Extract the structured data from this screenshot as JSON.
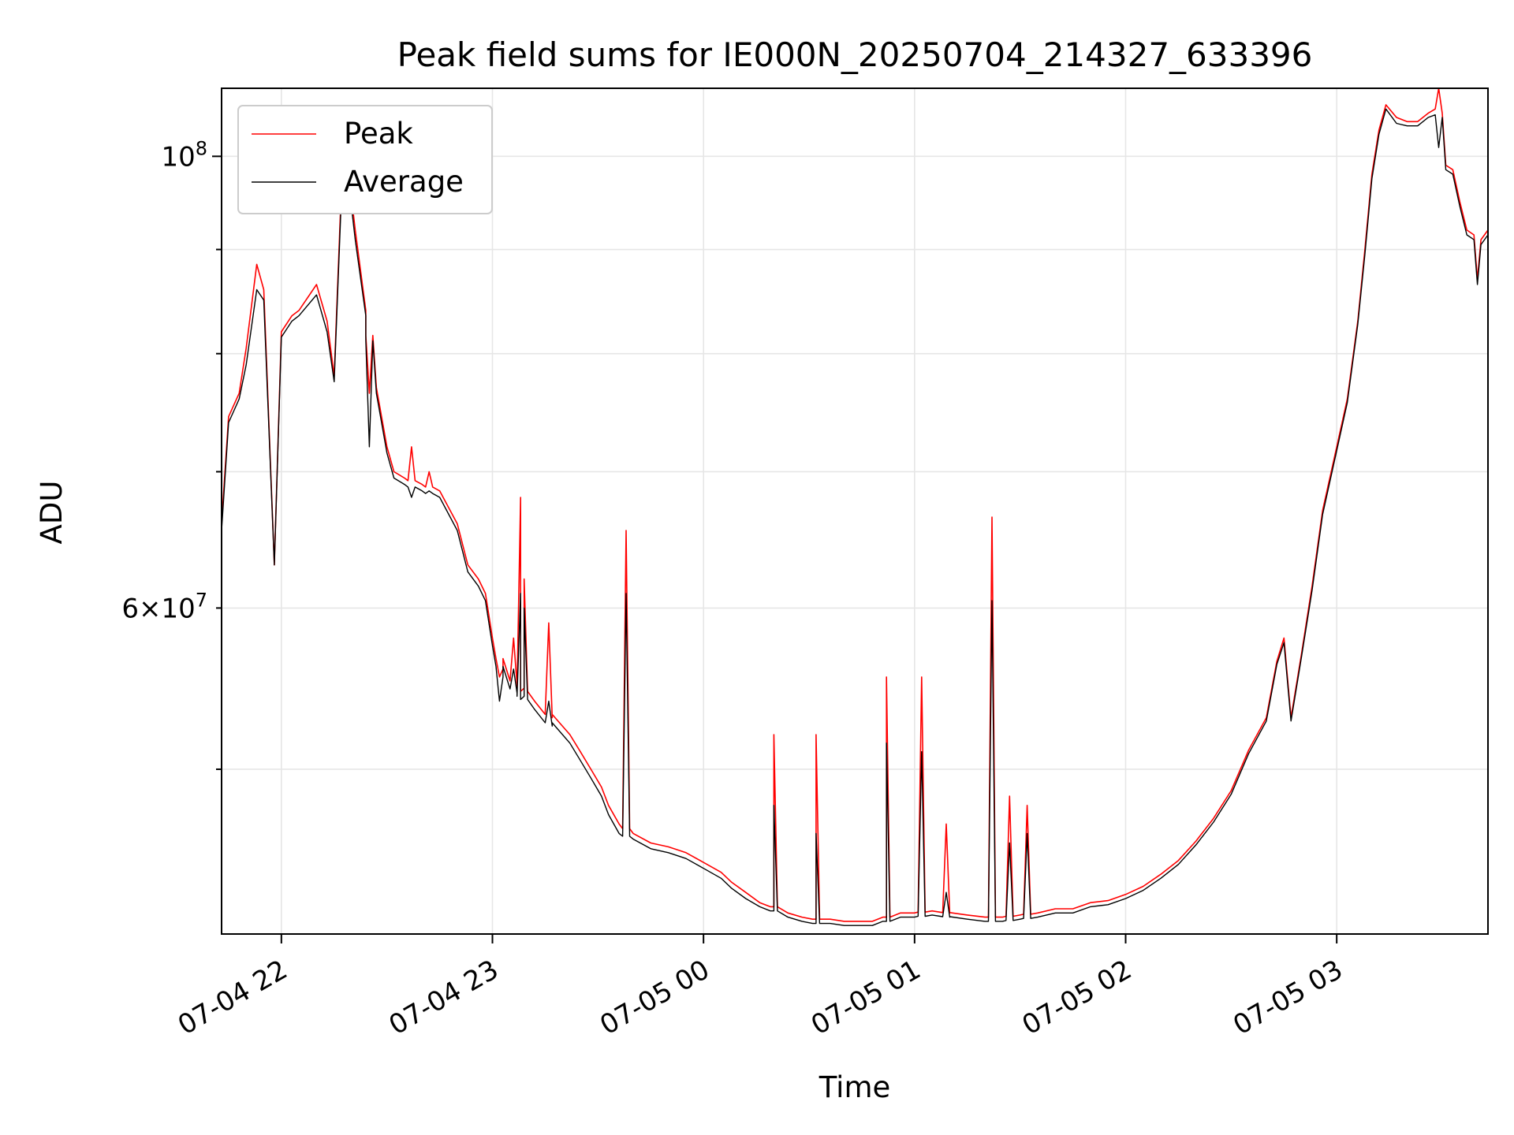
{
  "chart_data": {
    "type": "line",
    "title": "Peak field sums for IE000N_20250704_214327_633396",
    "xlabel": "Time",
    "ylabel": "ADU",
    "y_scale": "log",
    "ylim": [
      41500000,
      108000000
    ],
    "x_range": [
      "07-04 21:43",
      "07-05 03:43"
    ],
    "x_ticks": [
      "07-04 22",
      "07-04 23",
      "07-05 00",
      "07-05 01",
      "07-05 02",
      "07-05 03"
    ],
    "y_major_tick": {
      "value": 100000000,
      "label": "10^8"
    },
    "y_labeled_minor_tick": {
      "value": 60000000,
      "label": "6 × 10^7"
    },
    "grid": true,
    "legend": {
      "location": "upper-left"
    },
    "series": [
      {
        "name": "Peak",
        "color": "#ff0000",
        "points": [
          [
            "07-04 21:43",
            66000000
          ],
          [
            "07-04 21:45",
            74500000
          ],
          [
            "07-04 21:48",
            76500000
          ],
          [
            "07-04 21:50",
            80500000
          ],
          [
            "07-04 21:53",
            88500000
          ],
          [
            "07-04 21:55",
            86000000
          ],
          [
            "07-04 21:58",
            63000000
          ],
          [
            "07-04 22:00",
            82000000
          ],
          [
            "07-04 22:03",
            83500000
          ],
          [
            "07-04 22:05",
            84000000
          ],
          [
            "07-04 22:10",
            86500000
          ],
          [
            "07-04 22:13",
            83000000
          ],
          [
            "07-04 22:15",
            78000000
          ],
          [
            "07-04 22:17",
            96000000
          ],
          [
            "07-04 22:19",
            98500000
          ],
          [
            "07-04 22:21",
            92000000
          ],
          [
            "07-04 22:24",
            84000000
          ],
          [
            "07-04 22:27",
            77000000
          ],
          [
            "07-04 22:30",
            72000000
          ],
          [
            "07-04 22:32",
            70000000
          ],
          [
            "07-04 22:35",
            69500000
          ],
          [
            "07-04 22:40",
            69000000
          ],
          [
            "07-04 22:45",
            68500000
          ],
          [
            "07-04 22:50",
            66000000
          ],
          [
            "07-04 22:53",
            63000000
          ],
          [
            "07-04 22:56",
            62000000
          ],
          [
            "07-04 22:58",
            61000000
          ],
          [
            "07-04 23:00",
            58000000
          ],
          [
            "07-04 23:03",
            56000000
          ],
          [
            "07-04 23:07",
            55000000
          ],
          [
            "07-04 23:12",
            54000000
          ],
          [
            "07-04 23:17",
            53000000
          ],
          [
            "07-04 23:22",
            52000000
          ],
          [
            "07-04 23:25",
            51000000
          ],
          [
            "07-04 23:28",
            50000000
          ],
          [
            "07-04 23:31",
            49000000
          ],
          [
            "07-04 23:33",
            48000000
          ],
          [
            "07-04 23:36",
            47000000
          ],
          [
            "07-04 23:40",
            46500000
          ],
          [
            "07-04 23:45",
            46000000
          ],
          [
            "07-04 23:50",
            45800000
          ],
          [
            "07-04 23:55",
            45500000
          ],
          [
            "07-05 00:00",
            45000000
          ],
          [
            "07-05 00:05",
            44500000
          ],
          [
            "07-05 00:08",
            44000000
          ],
          [
            "07-05 00:12",
            43500000
          ],
          [
            "07-05 00:16",
            43000000
          ],
          [
            "07-05 00:20",
            42800000
          ],
          [
            "07-05 00:24",
            42500000
          ],
          [
            "07-05 00:28",
            42300000
          ],
          [
            "07-05 00:32",
            42200000
          ],
          [
            "07-05 00:36",
            42200000
          ],
          [
            "07-05 00:40",
            42100000
          ],
          [
            "07-05 00:44",
            42100000
          ],
          [
            "07-05 00:48",
            42100000
          ],
          [
            "07-05 00:52",
            42300000
          ],
          [
            "07-05 00:56",
            42500000
          ],
          [
            "07-05 01:00",
            42500000
          ],
          [
            "07-05 01:05",
            42600000
          ],
          [
            "07-05 01:10",
            42500000
          ],
          [
            "07-05 01:15",
            42400000
          ],
          [
            "07-05 01:20",
            42300000
          ],
          [
            "07-05 01:25",
            42300000
          ],
          [
            "07-05 01:30",
            42400000
          ],
          [
            "07-05 01:35",
            42500000
          ],
          [
            "07-05 01:40",
            42700000
          ],
          [
            "07-05 01:45",
            42700000
          ],
          [
            "07-05 01:50",
            43000000
          ],
          [
            "07-05 01:55",
            43100000
          ],
          [
            "07-05 02:00",
            43400000
          ],
          [
            "07-05 02:05",
            43800000
          ],
          [
            "07-05 02:10",
            44400000
          ],
          [
            "07-05 02:15",
            45100000
          ],
          [
            "07-05 02:20",
            46100000
          ],
          [
            "07-05 02:25",
            47300000
          ],
          [
            "07-05 02:30",
            48800000
          ],
          [
            "07-05 02:35",
            51100000
          ],
          [
            "07-05 02:40",
            53000000
          ],
          [
            "07-05 02:43",
            56500000
          ],
          [
            "07-05 02:45",
            58000000
          ],
          [
            "07-05 02:47",
            53000000
          ],
          [
            "07-05 02:50",
            57000000
          ],
          [
            "07-05 02:53",
            61500000
          ],
          [
            "07-05 02:56",
            67000000
          ],
          [
            "07-05 03:00",
            72000000
          ],
          [
            "07-05 03:03",
            76000000
          ],
          [
            "07-05 03:06",
            83000000
          ],
          [
            "07-05 03:08",
            90000000
          ],
          [
            "07-05 03:10",
            98000000
          ],
          [
            "07-05 03:12",
            103000000
          ],
          [
            "07-05 03:14",
            106000000
          ],
          [
            "07-05 03:17",
            104500000
          ],
          [
            "07-05 03:20",
            104000000
          ],
          [
            "07-05 03:23",
            104000000
          ],
          [
            "07-05 03:26",
            105000000
          ],
          [
            "07-05 03:28",
            105500000
          ],
          [
            "07-05 03:29",
            108000000
          ],
          [
            "07-05 03:30",
            105000000
          ],
          [
            "07-05 03:31",
            99000000
          ],
          [
            "07-05 03:33",
            98500000
          ],
          [
            "07-05 03:35",
            95000000
          ],
          [
            "07-05 03:37",
            92000000
          ],
          [
            "07-05 03:39",
            91500000
          ],
          [
            "07-05 03:40",
            87000000
          ],
          [
            "07-05 03:41",
            91000000
          ],
          [
            "07-05 03:43",
            92000000
          ]
        ],
        "spikes": [
          [
            "07-04 22:25",
            76500000
          ],
          [
            "07-04 22:37",
            72000000
          ],
          [
            "07-04 22:42",
            70000000
          ],
          [
            "07-04 23:02",
            55500000
          ],
          [
            "07-04 23:06",
            58000000
          ],
          [
            "07-04 23:08",
            68000000
          ],
          [
            "07-04 23:09",
            62000000
          ],
          [
            "07-04 23:16",
            59000000
          ],
          [
            "07-04 23:38",
            65500000
          ],
          [
            "07-05 00:20",
            52000000
          ],
          [
            "07-05 00:32",
            52000000
          ],
          [
            "07-05 00:52",
            55500000
          ],
          [
            "07-05 01:02",
            55500000
          ],
          [
            "07-05 01:09",
            47000000
          ],
          [
            "07-05 01:22",
            66500000
          ],
          [
            "07-05 01:27",
            48500000
          ],
          [
            "07-05 01:32",
            48000000
          ]
        ]
      },
      {
        "name": "Average",
        "color": "#000000",
        "points": [
          [
            "07-04 21:43",
            65500000
          ],
          [
            "07-04 21:45",
            74000000
          ],
          [
            "07-04 21:48",
            76000000
          ],
          [
            "07-04 21:50",
            79000000
          ],
          [
            "07-04 21:53",
            86000000
          ],
          [
            "07-04 21:55",
            85000000
          ],
          [
            "07-04 21:58",
            63000000
          ],
          [
            "07-04 22:00",
            81500000
          ],
          [
            "07-04 22:03",
            83000000
          ],
          [
            "07-04 22:05",
            83500000
          ],
          [
            "07-04 22:10",
            85500000
          ],
          [
            "07-04 22:13",
            82000000
          ],
          [
            "07-04 22:15",
            77500000
          ],
          [
            "07-04 22:17",
            95000000
          ],
          [
            "07-04 22:19",
            97500000
          ],
          [
            "07-04 22:21",
            91000000
          ],
          [
            "07-04 22:24",
            83500000
          ],
          [
            "07-04 22:27",
            76500000
          ],
          [
            "07-04 22:30",
            71500000
          ],
          [
            "07-04 22:32",
            69500000
          ],
          [
            "07-04 22:35",
            69000000
          ],
          [
            "07-04 22:40",
            68500000
          ],
          [
            "07-04 22:45",
            68000000
          ],
          [
            "07-04 22:50",
            65500000
          ],
          [
            "07-04 22:53",
            62500000
          ],
          [
            "07-04 22:56",
            61500000
          ],
          [
            "07-04 22:58",
            60500000
          ],
          [
            "07-04 23:00",
            57500000
          ],
          [
            "07-04 23:03",
            55500000
          ],
          [
            "07-04 23:07",
            54500000
          ],
          [
            "07-04 23:12",
            53500000
          ],
          [
            "07-04 23:17",
            52500000
          ],
          [
            "07-04 23:22",
            51500000
          ],
          [
            "07-04 23:25",
            50500000
          ],
          [
            "07-04 23:28",
            49500000
          ],
          [
            "07-04 23:31",
            48500000
          ],
          [
            "07-04 23:33",
            47500000
          ],
          [
            "07-04 23:36",
            46500000
          ],
          [
            "07-04 23:40",
            46200000
          ],
          [
            "07-04 23:45",
            45700000
          ],
          [
            "07-04 23:50",
            45500000
          ],
          [
            "07-04 23:55",
            45200000
          ],
          [
            "07-05 00:00",
            44700000
          ],
          [
            "07-05 00:05",
            44200000
          ],
          [
            "07-05 00:08",
            43700000
          ],
          [
            "07-05 00:12",
            43200000
          ],
          [
            "07-05 00:16",
            42800000
          ],
          [
            "07-05 00:20",
            42600000
          ],
          [
            "07-05 00:24",
            42300000
          ],
          [
            "07-05 00:28",
            42100000
          ],
          [
            "07-05 00:32",
            42000000
          ],
          [
            "07-05 00:36",
            42000000
          ],
          [
            "07-05 00:40",
            41900000
          ],
          [
            "07-05 00:44",
            41900000
          ],
          [
            "07-05 00:48",
            41900000
          ],
          [
            "07-05 00:52",
            42100000
          ],
          [
            "07-05 00:56",
            42300000
          ],
          [
            "07-05 01:00",
            42300000
          ],
          [
            "07-05 01:05",
            42400000
          ],
          [
            "07-05 01:10",
            42300000
          ],
          [
            "07-05 01:15",
            42200000
          ],
          [
            "07-05 01:20",
            42100000
          ],
          [
            "07-05 01:25",
            42100000
          ],
          [
            "07-05 01:30",
            42200000
          ],
          [
            "07-05 01:35",
            42300000
          ],
          [
            "07-05 01:40",
            42500000
          ],
          [
            "07-05 01:45",
            42500000
          ],
          [
            "07-05 01:50",
            42800000
          ],
          [
            "07-05 01:55",
            42900000
          ],
          [
            "07-05 02:00",
            43200000
          ],
          [
            "07-05 02:05",
            43600000
          ],
          [
            "07-05 02:10",
            44200000
          ],
          [
            "07-05 02:15",
            44900000
          ],
          [
            "07-05 02:20",
            45900000
          ],
          [
            "07-05 02:25",
            47100000
          ],
          [
            "07-05 02:30",
            48600000
          ],
          [
            "07-05 02:35",
            50900000
          ],
          [
            "07-05 02:40",
            52800000
          ],
          [
            "07-05 02:43",
            56300000
          ],
          [
            "07-05 02:45",
            57700000
          ],
          [
            "07-05 02:47",
            52800000
          ],
          [
            "07-05 02:50",
            56800000
          ],
          [
            "07-05 02:53",
            61200000
          ],
          [
            "07-05 02:56",
            66700000
          ],
          [
            "07-05 03:00",
            71700000
          ],
          [
            "07-05 03:03",
            75700000
          ],
          [
            "07-05 03:06",
            82700000
          ],
          [
            "07-05 03:08",
            89500000
          ],
          [
            "07-05 03:10",
            97500000
          ],
          [
            "07-05 03:12",
            102500000
          ],
          [
            "07-05 03:14",
            105500000
          ],
          [
            "07-05 03:17",
            103800000
          ],
          [
            "07-05 03:20",
            103500000
          ],
          [
            "07-05 03:23",
            103500000
          ],
          [
            "07-05 03:26",
            104500000
          ],
          [
            "07-05 03:28",
            104800000
          ],
          [
            "07-05 03:29",
            101000000
          ],
          [
            "07-05 03:30",
            104500000
          ],
          [
            "07-05 03:31",
            98500000
          ],
          [
            "07-05 03:33",
            98000000
          ],
          [
            "07-05 03:35",
            94500000
          ],
          [
            "07-05 03:37",
            91500000
          ],
          [
            "07-05 03:39",
            91000000
          ],
          [
            "07-05 03:40",
            86500000
          ],
          [
            "07-05 03:41",
            90500000
          ],
          [
            "07-05 03:43",
            91500000
          ]
        ],
        "spikes": [
          [
            "07-04 22:25",
            72000000
          ],
          [
            "07-04 22:37",
            68000000
          ],
          [
            "07-04 22:42",
            68500000
          ],
          [
            "07-04 23:02",
            54000000
          ],
          [
            "07-04 23:06",
            56000000
          ],
          [
            "07-04 23:08",
            61000000
          ],
          [
            "07-04 23:09",
            60000000
          ],
          [
            "07-04 23:16",
            54000000
          ],
          [
            "07-04 23:38",
            61000000
          ],
          [
            "07-05 00:20",
            48000000
          ],
          [
            "07-05 00:32",
            46500000
          ],
          [
            "07-05 00:52",
            51500000
          ],
          [
            "07-05 01:02",
            51000000
          ],
          [
            "07-05 01:09",
            43500000
          ],
          [
            "07-05 01:22",
            60500000
          ],
          [
            "07-05 01:27",
            46000000
          ],
          [
            "07-05 01:32",
            46500000
          ]
        ]
      }
    ]
  }
}
